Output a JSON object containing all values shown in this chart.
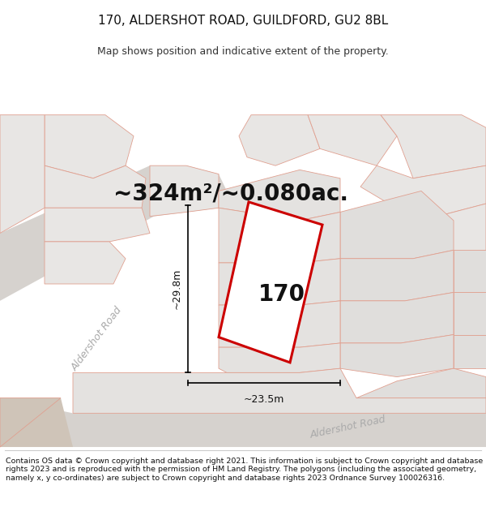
{
  "title_line1": "170, ALDERSHOT ROAD, GUILDFORD, GU2 8BL",
  "title_line2": "Map shows position and indicative extent of the property.",
  "area_text": "~324m²/~0.080ac.",
  "label_170": "170",
  "dim_vertical": "~29.8m",
  "dim_horizontal": "~23.5m",
  "road_label_upper": "Aldershot Road",
  "road_label_lower": "Aldershot Road",
  "footer_text": "Contains OS data © Crown copyright and database right 2021. This information is subject to Crown copyright and database rights 2023 and is reproduced with the permission of HM Land Registry. The polygons (including the associated geometry, namely x, y co-ordinates) are subject to Crown copyright and database rights 2023 Ordnance Survey 100026316.",
  "bg_color": "#ffffff",
  "map_bg": "#ffffff",
  "road_fill_upper": "#d8d4d0",
  "road_fill_lower": "#d8d4d0",
  "road_fill_tan": "#ddd0c4",
  "parcel_fill_gray": "#e0dedd",
  "parcel_fill_white": "#f0efee",
  "plot_outline_color": "#cc0000",
  "plot_fill": "#ffffff",
  "neighbor_outline": "#e8a0a0",
  "title_fontsize": 11,
  "subtitle_fontsize": 9,
  "area_fontsize": 20,
  "label_fontsize": 20,
  "dim_fontsize": 9,
  "road_label_fontsize": 9,
  "footer_fontsize": 6.8
}
